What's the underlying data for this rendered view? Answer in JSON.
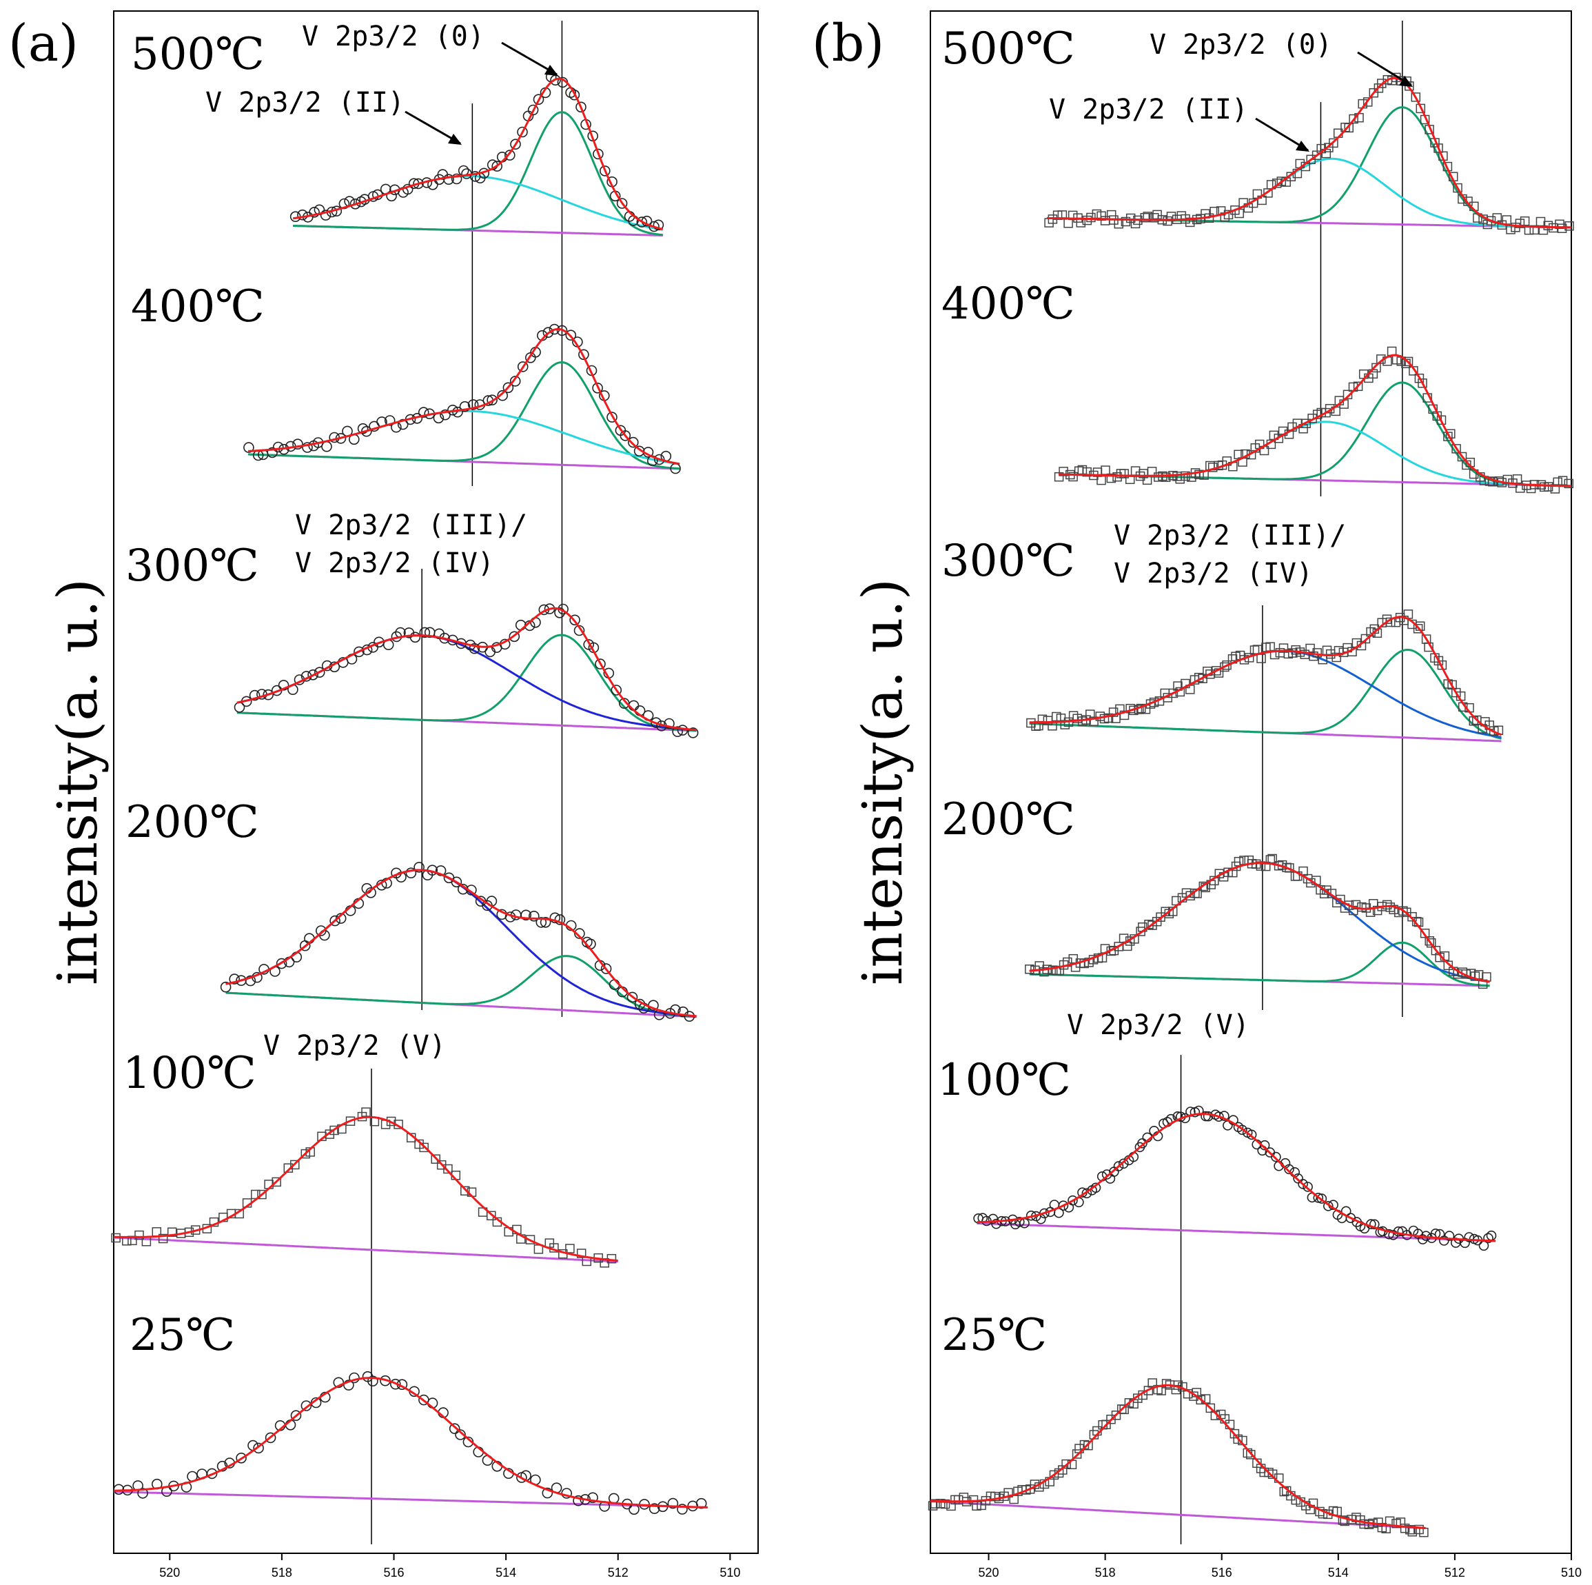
{
  "chart_data": [
    {
      "type": "line",
      "panel": "(a)",
      "marker": "circle",
      "ylabel": "intensity(a. u.)",
      "xlim": [
        521,
        509.5
      ],
      "xticks": [
        520,
        518,
        516,
        514,
        512,
        510
      ],
      "ref_lines": [
        514.6,
        515.5,
        516.4,
        513.0
      ],
      "annotations": [
        {
          "text": "V 2p3/2 (0)",
          "curve": "500℃"
        },
        {
          "text": "V 2p3/2 (II)",
          "curve": "500℃"
        },
        {
          "text": "V 2p3/2 (III)/",
          "curve": "300℃"
        },
        {
          "text": "V 2p3/2 (IV)",
          "curve": "300℃"
        },
        {
          "text": "V 2p3/2 (V)",
          "curve": "100℃"
        }
      ],
      "spectra": [
        {
          "label": "500℃",
          "range": [
            517.8,
            511.2
          ],
          "bg": [
            0.1,
            0.02
          ],
          "peaks": [
            {
              "center": 513.0,
              "height": 1.0,
              "width": 0.55,
              "state": "V(0)"
            },
            {
              "center": 514.6,
              "height": 0.45,
              "width": 1.6,
              "state": "V(II)"
            }
          ]
        },
        {
          "label": "400℃",
          "range": [
            518.6,
            510.9
          ],
          "bg": [
            0.12,
            0.0
          ],
          "peaks": [
            {
              "center": 513.0,
              "height": 0.85,
              "width": 0.6,
              "state": "V(0)"
            },
            {
              "center": 514.6,
              "height": 0.42,
              "width": 1.7,
              "state": "V(II)"
            }
          ]
        },
        {
          "label": "300℃",
          "range": [
            518.8,
            510.6
          ],
          "bg": [
            0.15,
            0.0
          ],
          "peaks": [
            {
              "center": 513.0,
              "height": 0.75,
              "width": 0.65,
              "state": "V(0)"
            },
            {
              "center": 515.5,
              "height": 0.7,
              "width": 1.6,
              "state": "V(III)/V(IV)"
            }
          ]
        },
        {
          "label": "200℃",
          "range": [
            519.0,
            510.6
          ],
          "bg": [
            0.2,
            0.0
          ],
          "peaks": [
            {
              "center": 512.9,
              "height": 0.45,
              "width": 0.65,
              "state": "V(0)"
            },
            {
              "center": 515.5,
              "height": 1.1,
              "width": 1.5,
              "state": "V(III)/V(IV)"
            }
          ]
        },
        {
          "label": "100℃",
          "range": [
            521.0,
            512.0
          ],
          "bg": [
            0.2,
            0.0
          ],
          "peaks": [
            {
              "center": 516.4,
              "height": 1.1,
              "width": 1.4,
              "state": "V(V)"
            }
          ]
        },
        {
          "label": "25℃",
          "range": [
            521.0,
            510.4
          ],
          "bg": [
            0.15,
            0.02
          ],
          "peaks": [
            {
              "center": 516.4,
              "height": 1.0,
              "width": 1.5,
              "state": "V(V)"
            }
          ]
        }
      ]
    },
    {
      "type": "line",
      "panel": "(b)",
      "marker": "square",
      "ylabel": "intensity(a. u.)",
      "xlim": [
        521,
        510
      ],
      "xticks": [
        520,
        518,
        516,
        514,
        512,
        510
      ],
      "ref_lines": [
        514.3,
        515.3,
        516.7,
        512.9
      ],
      "annotations": [
        {
          "text": "V 2p3/2 (0)",
          "curve": "500℃"
        },
        {
          "text": "V 2p3/2 (II)",
          "curve": "500℃"
        },
        {
          "text": "V 2p3/2 (III)/",
          "curve": "300℃"
        },
        {
          "text": "V 2p3/2 (IV)",
          "curve": "300℃"
        },
        {
          "text": "V 2p3/2 (V)",
          "curve": "100℃"
        }
      ],
      "spectra": [
        {
          "label": "500℃",
          "range": [
            519.0,
            510.0
          ],
          "bg": [
            0.08,
            0.0
          ],
          "peaks": [
            {
              "center": 512.9,
              "height": 1.0,
              "width": 0.6,
              "state": "V(0)"
            },
            {
              "center": 514.1,
              "height": 0.55,
              "width": 0.9,
              "state": "V(II)"
            }
          ]
        },
        {
          "label": "400℃",
          "range": [
            518.8,
            510.0
          ],
          "bg": [
            0.1,
            0.0
          ],
          "peaks": [
            {
              "center": 512.9,
              "height": 0.85,
              "width": 0.6,
              "state": "V(0)"
            },
            {
              "center": 514.2,
              "height": 0.5,
              "width": 1.0,
              "state": "V(II)"
            }
          ]
        },
        {
          "label": "300℃",
          "range": [
            519.3,
            511.2
          ],
          "bg": [
            0.15,
            0.0
          ],
          "peaks": [
            {
              "center": 512.8,
              "height": 0.75,
              "width": 0.6,
              "state": "V(0)"
            },
            {
              "center": 514.9,
              "height": 0.7,
              "width": 1.5,
              "state": "V(III)/V(IV)"
            }
          ]
        },
        {
          "label": "200℃",
          "range": [
            519.3,
            511.4
          ],
          "bg": [
            0.1,
            0.0
          ],
          "peaks": [
            {
              "center": 512.9,
              "height": 0.35,
              "width": 0.45,
              "state": "V(0)"
            },
            {
              "center": 515.3,
              "height": 1.0,
              "width": 1.5,
              "state": "V(III)/V(IV)"
            }
          ]
        },
        {
          "label": "100℃",
          "range": [
            520.2,
            511.3
          ],
          "bg": [
            0.15,
            0.0
          ],
          "peaks": [
            {
              "center": 516.3,
              "height": 1.0,
              "width": 1.3,
              "state": "V(V)"
            }
          ]
        },
        {
          "label": "25℃",
          "range": [
            521.0,
            512.5
          ],
          "bg": [
            0.25,
            0.02
          ],
          "peaks": [
            {
              "center": 516.9,
              "height": 1.1,
              "width": 1.2,
              "state": "V(V)"
            }
          ]
        }
      ]
    }
  ],
  "colors": {
    "envelope": "#ee1c1c",
    "v0": "#12a06a",
    "v2": "#25d7dc",
    "v34": "#1f24d6",
    "v34b": "#1560d0",
    "background": "#c058d8",
    "frame": "#000000",
    "marker": "#444444"
  }
}
